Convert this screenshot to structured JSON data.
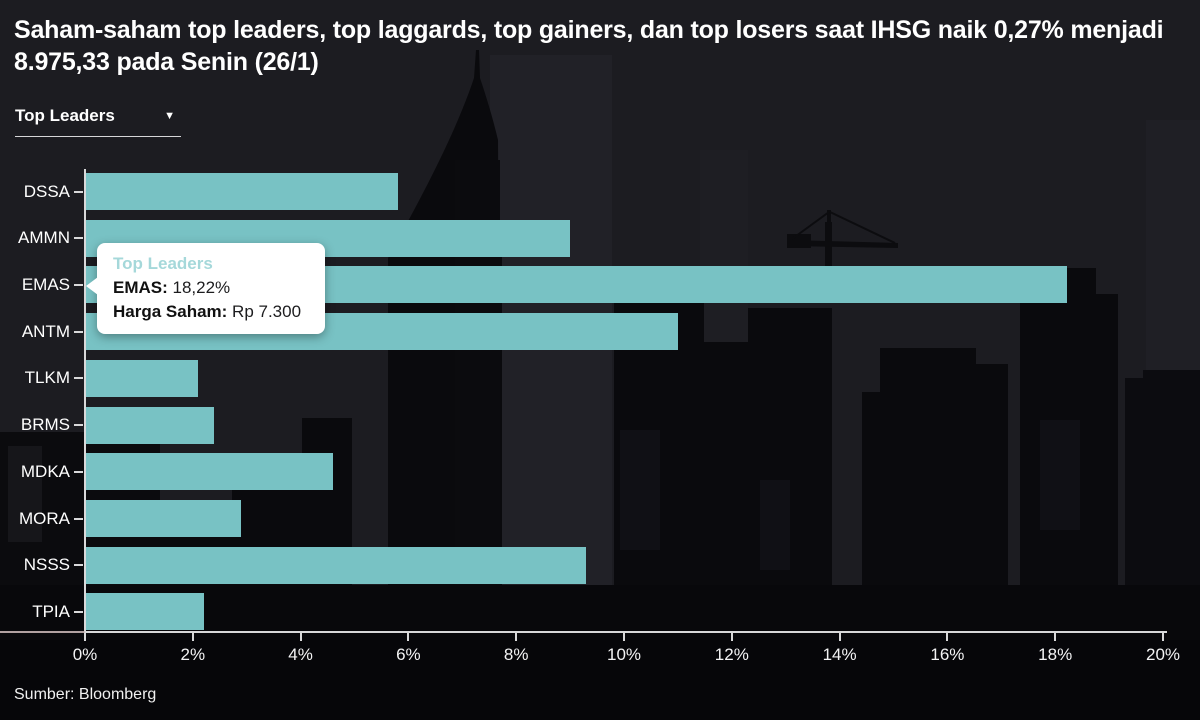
{
  "header": {
    "title": "Saham-saham top leaders, top laggards, top gainers, dan top losers saat IHSG naik 0,27% menjadi 8.975,33 pada Senin (26/1)"
  },
  "dropdown": {
    "selected": "Top Leaders",
    "caret_icon": "▼"
  },
  "tooltip": {
    "title": "Top Leaders",
    "line1_label": "EMAS:",
    "line1_value": " 18,22%",
    "line2_label": "Harga Saham:",
    "line2_value": " Rp 7.300"
  },
  "source": "Sumber: Bloomberg",
  "chart_data": {
    "type": "bar",
    "orientation": "horizontal",
    "title": "Top Leaders",
    "categories": [
      "DSSA",
      "AMMN",
      "EMAS",
      "ANTM",
      "TLKM",
      "BRMS",
      "MDKA",
      "MORA",
      "NSSS",
      "TPIA"
    ],
    "values": [
      5.8,
      9.0,
      18.22,
      11.0,
      2.1,
      2.4,
      4.6,
      2.9,
      9.3,
      2.2
    ],
    "unit": "%",
    "xlim": [
      0,
      20
    ],
    "x_ticks": [
      "0%",
      "2%",
      "4%",
      "6%",
      "8%",
      "10%",
      "12%",
      "14%",
      "16%",
      "18%",
      "20%"
    ],
    "grid": false,
    "legend": false,
    "highlighted_point": {
      "category": "EMAS",
      "value": "18,22%",
      "harga_saham": "Rp 7.300"
    }
  },
  "colors": {
    "background": "#1c1c21",
    "bar": "#78c2c4",
    "axis": "#d9d9da",
    "text": "#ffffff",
    "tooltip_title": "#a5d8da",
    "skyline": "#0a0a0d"
  }
}
